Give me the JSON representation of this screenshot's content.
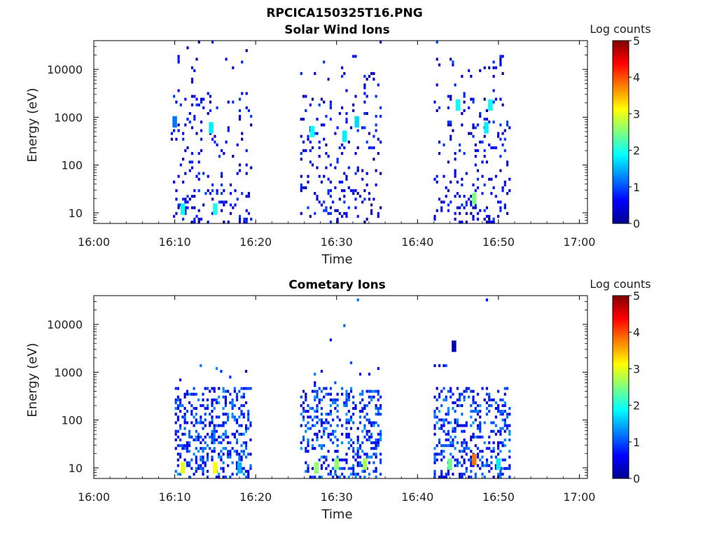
{
  "figure": {
    "title": "RPCICA150325T16.PNG"
  },
  "colorbar": {
    "label": "Log counts",
    "ticks": [
      "0",
      "1",
      "2",
      "3",
      "4",
      "5"
    ],
    "range": [
      0,
      5
    ],
    "colormap": "jet"
  },
  "chart_data": [
    {
      "type": "heatmap",
      "title": "Solar Wind Ions",
      "xlabel": "Time",
      "ylabel": "Energy (eV)",
      "x_ticks": [
        "16:00",
        "16:10",
        "16:20",
        "16:30",
        "16:40",
        "16:50",
        "17:00"
      ],
      "y_ticks": [
        "10",
        "100",
        "1000",
        "10000"
      ],
      "y_scale": "log",
      "xlim": [
        "16:00",
        "17:01"
      ],
      "ylim": [
        6,
        40000
      ],
      "colorbar_label": "Log counts",
      "activity_intervals": [
        [
          "16:09:30",
          "16:19:30"
        ],
        [
          "16:25:30",
          "16:35:30"
        ],
        [
          "16:42:00",
          "16:51:30"
        ]
      ],
      "features": [
        {
          "time": "16:10:00",
          "energy": 800,
          "log_counts": 1.2
        },
        {
          "time": "16:11:00",
          "energy": 12,
          "log_counts": 1.9
        },
        {
          "time": "16:15:00",
          "energy": 12,
          "log_counts": 2.0
        },
        {
          "time": "16:14:30",
          "energy": 600,
          "log_counts": 1.8
        },
        {
          "time": "16:27:00",
          "energy": 500,
          "log_counts": 1.9
        },
        {
          "time": "16:31:00",
          "energy": 400,
          "log_counts": 1.8
        },
        {
          "time": "16:32:30",
          "energy": 800,
          "log_counts": 1.7
        },
        {
          "time": "16:45:00",
          "energy": 1800,
          "log_counts": 1.9
        },
        {
          "time": "16:47:00",
          "energy": 20,
          "log_counts": 2.5
        },
        {
          "time": "16:49:00",
          "energy": 1800,
          "log_counts": 1.9
        },
        {
          "time": "16:48:30",
          "energy": 600,
          "log_counts": 1.8
        }
      ]
    },
    {
      "type": "heatmap",
      "title": "Cometary Ions",
      "xlabel": "Time",
      "ylabel": "Energy (eV)",
      "x_ticks": [
        "16:00",
        "16:10",
        "16:20",
        "16:30",
        "16:40",
        "16:50",
        "17:00"
      ],
      "y_ticks": [
        "10",
        "100",
        "1000",
        "10000"
      ],
      "y_scale": "log",
      "xlim": [
        "16:00",
        "17:01"
      ],
      "ylim": [
        6,
        40000
      ],
      "colorbar_label": "Log counts",
      "activity_intervals": [
        [
          "16:10:00",
          "16:19:30"
        ],
        [
          "16:25:30",
          "16:35:30"
        ],
        [
          "16:42:00",
          "16:51:30"
        ]
      ],
      "features": [
        {
          "time": "16:11:00",
          "energy": 10,
          "log_counts": 3.0
        },
        {
          "time": "16:15:00",
          "energy": 10,
          "log_counts": 3.1
        },
        {
          "time": "16:18:00",
          "energy": 10,
          "log_counts": 1.5
        },
        {
          "time": "16:27:30",
          "energy": 10,
          "log_counts": 2.6
        },
        {
          "time": "16:30:00",
          "energy": 12,
          "log_counts": 2.6
        },
        {
          "time": "16:33:30",
          "energy": 12,
          "log_counts": 2.7
        },
        {
          "time": "16:44:00",
          "energy": 12,
          "log_counts": 2.4
        },
        {
          "time": "16:47:00",
          "energy": 15,
          "log_counts": 3.8
        },
        {
          "time": "16:50:00",
          "energy": 12,
          "log_counts": 1.8
        },
        {
          "time": "16:44:30",
          "energy": 3500,
          "log_counts": 0.3
        }
      ]
    }
  ]
}
